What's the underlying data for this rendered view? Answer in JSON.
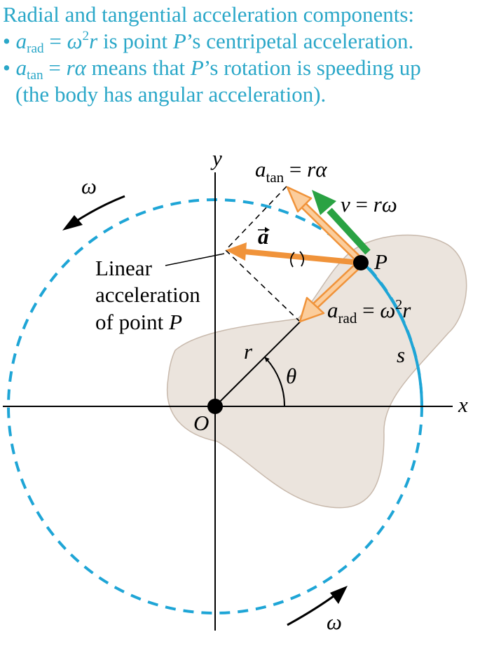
{
  "caption": {
    "heading": "Radial and tangential acceleration components:",
    "bullet": "•",
    "b1_sym": "a",
    "b1_sub": "rad",
    "b1_eq": " = ",
    "b1_omega": "ω",
    "b1_exp": "2",
    "b1_r": "r",
    "b1_text1": " is point ",
    "b1_P": "P",
    "b1_text2": "’s centripetal acceleration.",
    "b2_sym": "a",
    "b2_sub": "tan",
    "b2_eq": " = ",
    "b2_ralpha": "rα",
    "b2_text1": " means that ",
    "b2_P": "P",
    "b2_text2": "’s rotation is speeding up",
    "b2_line2": "(the body has angular acceleration)."
  },
  "labels": {
    "y_axis": "y",
    "x_axis": "x",
    "origin": "O",
    "point": "P",
    "radius": "r",
    "theta": "θ",
    "arc": "s",
    "omega_top": "ω",
    "omega_bottom": "ω",
    "a_vec": "a",
    "atan_sym": "a",
    "atan_sub": "tan",
    "atan_eq": " = ",
    "atan_rhs": "rα",
    "v_lhs": "v",
    "v_eq": " = ",
    "v_rhs": "rω",
    "arad_sym": "a",
    "arad_sub": "rad",
    "arad_eq": " = ",
    "arad_omega": "ω",
    "arad_exp": "2",
    "arad_r": "r",
    "linear_1": "Linear",
    "linear_2": "acceleration",
    "linear_3": "of point ",
    "linear_P": "P"
  },
  "colors": {
    "caption": "#2aa7c8",
    "circle": "#1ea5d6",
    "body": "#ebe4dd",
    "a_vector": "#f0933a",
    "component_fill": "#fbcd9c",
    "v_vector": "#2aa243"
  }
}
